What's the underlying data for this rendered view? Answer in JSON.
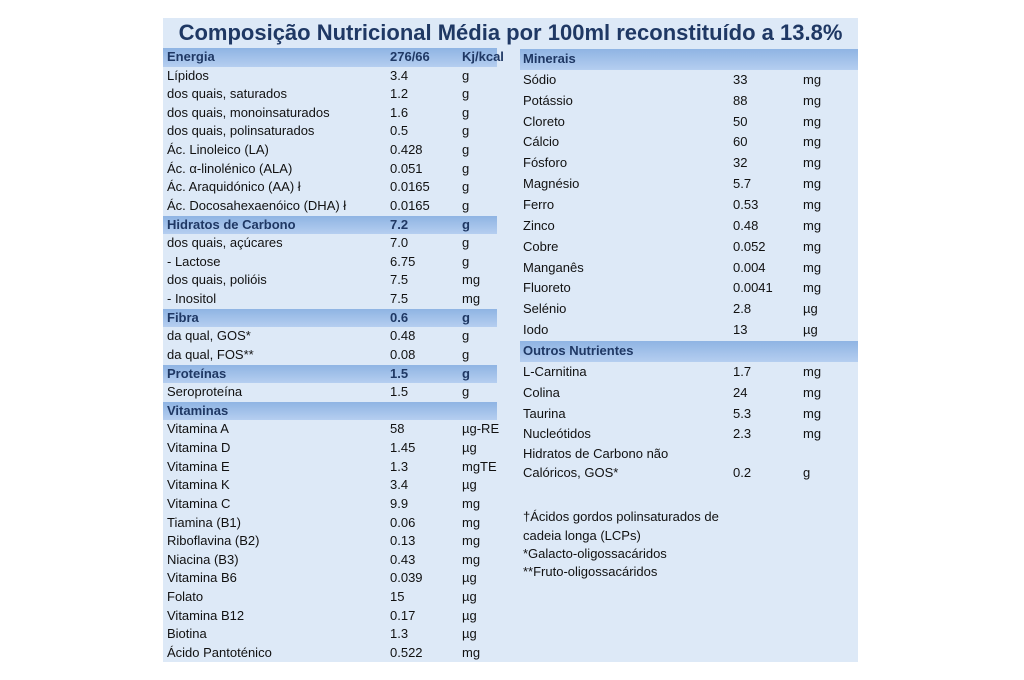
{
  "title": "Composição Nutricional Média por 100ml reconstituído a 13.8%",
  "left_table": [
    {
      "header": {
        "label": "Energia",
        "value": "276/66",
        "unit": "Kj/kcal"
      },
      "rows": [
        {
          "label": "Lípidos",
          "value": "3.4",
          "unit": "g"
        },
        {
          "label": "dos quais, saturados",
          "value": "1.2",
          "unit": "g"
        },
        {
          "label": "dos quais, monoinsaturados",
          "value": "1.6",
          "unit": "g"
        },
        {
          "label": "dos quais, polinsaturados",
          "value": "0.5",
          "unit": "g"
        },
        {
          "label": "Ác. Linoleico (LA)",
          "value": "0.428",
          "unit": "g"
        },
        {
          "label": "Ác. α-linolénico (ALA)",
          "value": "0.051",
          "unit": "g"
        },
        {
          "label": "Ác. Araquidónico (AA) ł",
          "value": "0.0165",
          "unit": "g"
        },
        {
          "label": "Ác. Docosahexaenóico (DHA) ł",
          "value": "0.0165",
          "unit": "g"
        }
      ]
    },
    {
      "header": {
        "label": "Hidratos de Carbono",
        "value": "7.2",
        "unit": "g"
      },
      "rows": [
        {
          "label": "dos quais, açúcares",
          "value": "7.0",
          "unit": "g"
        },
        {
          "label": "- Lactose",
          "value": "6.75",
          "unit": "g"
        },
        {
          "label": "dos quais, polióis",
          "value": "7.5",
          "unit": "mg"
        },
        {
          "label": "- Inositol",
          "value": "7.5",
          "unit": "mg"
        }
      ]
    },
    {
      "header": {
        "label": "Fibra",
        "value": "0.6",
        "unit": "g"
      },
      "rows": [
        {
          "label": "da qual, GOS*",
          "value": "0.48",
          "unit": "g"
        },
        {
          "label": "da qual, FOS**",
          "value": "0.08",
          "unit": "g"
        }
      ]
    },
    {
      "header": {
        "label": "Proteínas",
        "value": "1.5",
        "unit": "g"
      },
      "rows": [
        {
          "label": "Seroproteína",
          "value": "1.5",
          "unit": "g"
        }
      ]
    },
    {
      "header": {
        "label": "Vitaminas"
      },
      "rows": [
        {
          "label": "Vitamina A",
          "value": "58",
          "unit": "µg-RE"
        },
        {
          "label": "Vitamina D",
          "value": "1.45",
          "unit": "µg"
        },
        {
          "label": "Vitamina E",
          "value": "1.3",
          "unit": "mgTE"
        },
        {
          "label": "Vitamina K",
          "value": "3.4",
          "unit": "µg"
        },
        {
          "label": "Vitamina C",
          "value": "9.9",
          "unit": "mg"
        },
        {
          "label": "Tiamina (B1)",
          "value": "0.06",
          "unit": "mg"
        },
        {
          "label": "Riboflavina (B2)",
          "value": "0.13",
          "unit": "mg"
        },
        {
          "label": "Niacina (B3)",
          "value": "0.43",
          "unit": "mg"
        },
        {
          "label": "Vitamina B6",
          "value": "0.039",
          "unit": "µg"
        },
        {
          "label": "Folato",
          "value": "15",
          "unit": "µg"
        },
        {
          "label": "Vitamina B12",
          "value": "0.17",
          "unit": "µg"
        },
        {
          "label": "Biotina",
          "value": "1.3",
          "unit": "µg"
        },
        {
          "label": "Ácido Pantoténico",
          "value": "0.522",
          "unit": "mg"
        }
      ]
    }
  ],
  "right_table": [
    {
      "header": {
        "label": "Minerais"
      },
      "rows": [
        {
          "label": "Sódio",
          "value": "33",
          "unit": "mg"
        },
        {
          "label": "Potássio",
          "value": "88",
          "unit": "mg"
        },
        {
          "label": "Cloreto",
          "value": "50",
          "unit": "mg"
        },
        {
          "label": "Cálcio",
          "value": "60",
          "unit": "mg"
        },
        {
          "label": "Fósforo",
          "value": "32",
          "unit": "mg"
        },
        {
          "label": "Magnésio",
          "value": "5.7",
          "unit": "mg"
        },
        {
          "label": "Ferro",
          "value": "0.53",
          "unit": "mg"
        },
        {
          "label": "Zinco",
          "value": "0.48",
          "unit": "mg"
        },
        {
          "label": "Cobre",
          "value": "0.052",
          "unit": "mg"
        },
        {
          "label": "Manganês",
          "value": "0.004",
          "unit": "mg"
        },
        {
          "label": "Fluoreto",
          "value": "0.0041",
          "unit": "mg"
        },
        {
          "label": "Selénio",
          "value": "2.8",
          "unit": "µg"
        },
        {
          "label": "Iodo",
          "value": "13",
          "unit": "µg"
        }
      ]
    },
    {
      "header": {
        "label": "Outros Nutrientes"
      },
      "rows": [
        {
          "label": "L-Carnitina",
          "value": "1.7",
          "unit": "mg"
        },
        {
          "label": "Colina",
          "value": "24",
          "unit": "mg"
        },
        {
          "label": "Taurina",
          "value": "5.3",
          "unit": "mg"
        },
        {
          "label": "Nucleótidos",
          "value": "2.3",
          "unit": "mg"
        },
        {
          "label": [
            "Hidratos de Carbono não",
            "Calóricos, GOS*"
          ],
          "value": "0.2",
          "unit": "g"
        }
      ]
    }
  ],
  "notes": [
    "†Ácidos gordos polinsaturados de",
    "cadeia longa (LCPs)",
    "*Galacto-oligossacáridos",
    "**Fruto-oligossacáridos"
  ]
}
